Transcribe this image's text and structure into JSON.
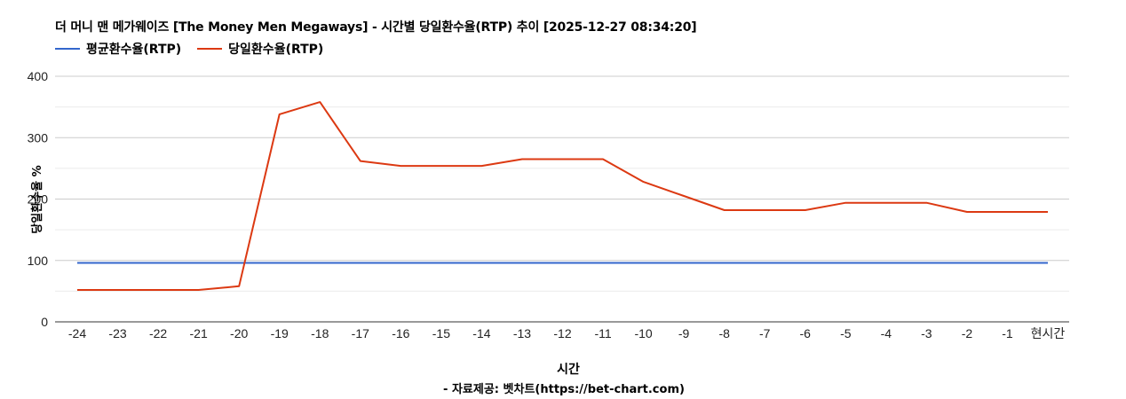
{
  "chart": {
    "title": "더 머니 맨 메가웨이즈 [The Money Men Megaways] - 시간별 당일환수율(RTP) 추이 [2025-12-27 08:34:20]",
    "legend": [
      {
        "label": "평균환수율(RTP)",
        "color": "#3366cc"
      },
      {
        "label": "당일환수율(RTP)",
        "color": "#dc3912"
      }
    ],
    "xlabel": "시간",
    "ylabel": "당일환수율 %",
    "source": "- 자료제공: 벳차트(https://bet-chart.com)"
  },
  "chart_data": {
    "type": "line",
    "title": "더 머니 맨 메가웨이즈 [The Money Men Megaways] - 시간별 당일환수율(RTP) 추이 [2025-12-27 08:34:20]",
    "xlabel": "시간",
    "ylabel": "당일환수율 %",
    "categories": [
      "-24",
      "-23",
      "-22",
      "-21",
      "-20",
      "-19",
      "-18",
      "-17",
      "-16",
      "-15",
      "-14",
      "-13",
      "-12",
      "-11",
      "-10",
      "-9",
      "-8",
      "-7",
      "-6",
      "-5",
      "-4",
      "-3",
      "-2",
      "-1",
      "현시간"
    ],
    "series": [
      {
        "name": "평균환수율(RTP)",
        "color": "#3366cc",
        "values": [
          96,
          96,
          96,
          96,
          96,
          96,
          96,
          96,
          96,
          96,
          96,
          96,
          96,
          96,
          96,
          96,
          96,
          96,
          96,
          96,
          96,
          96,
          96,
          96,
          96
        ]
      },
      {
        "name": "당일환수율(RTP)",
        "color": "#dc3912",
        "values": [
          52,
          52,
          52,
          52,
          58,
          338,
          358,
          262,
          254,
          254,
          254,
          265,
          265,
          265,
          228,
          205,
          182,
          182,
          182,
          194,
          194,
          194,
          179,
          179,
          179
        ]
      }
    ],
    "ylim": [
      0,
      400
    ],
    "yticks": [
      0,
      100,
      200,
      300,
      400
    ],
    "minor_gridlines": [
      50,
      150,
      250,
      350
    ],
    "grid": true,
    "legend_position": "top"
  }
}
